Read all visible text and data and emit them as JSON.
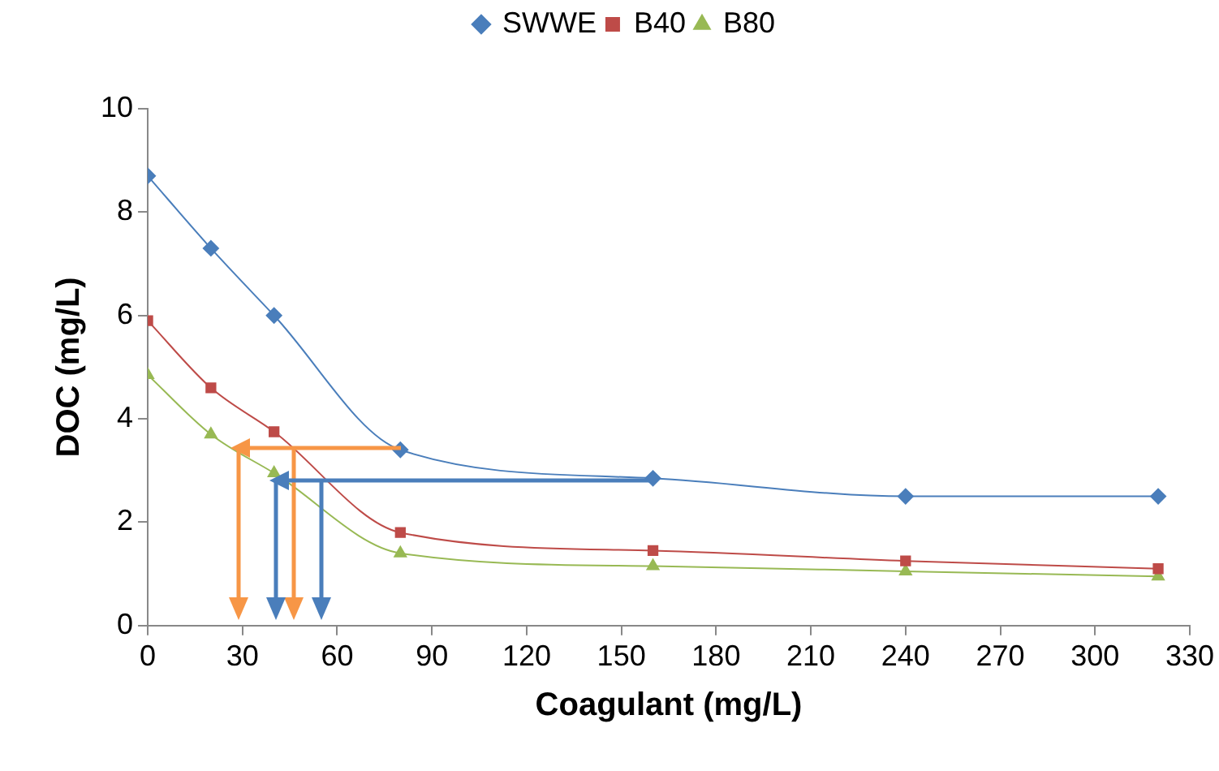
{
  "chart_data": {
    "type": "line",
    "xlabel": "Coagulant (mg/L)",
    "ylabel": "DOC (mg/L)",
    "x": [
      0,
      20,
      40,
      80,
      160,
      240,
      320
    ],
    "series": [
      {
        "name": "SWWE",
        "color": "#4a7ebb",
        "marker": "diamond",
        "values": [
          8.7,
          7.3,
          6.0,
          3.4,
          2.85,
          2.5,
          2.5
        ]
      },
      {
        "name": "B40",
        "color": "#be4b48",
        "marker": "square",
        "values": [
          5.9,
          4.6,
          3.75,
          1.8,
          1.45,
          1.25,
          1.1
        ]
      },
      {
        "name": "B80",
        "color": "#98b954",
        "marker": "triangle",
        "values": [
          4.85,
          3.7,
          2.95,
          1.4,
          1.15,
          1.05,
          0.95
        ]
      }
    ],
    "xlim": [
      0,
      330
    ],
    "xticks": [
      0,
      30,
      60,
      90,
      120,
      150,
      180,
      210,
      240,
      270,
      300,
      330
    ],
    "ylim": [
      0,
      10
    ],
    "yticks": [
      0,
      2,
      4,
      6,
      8,
      10
    ],
    "grid": false,
    "legend": "top"
  }
}
